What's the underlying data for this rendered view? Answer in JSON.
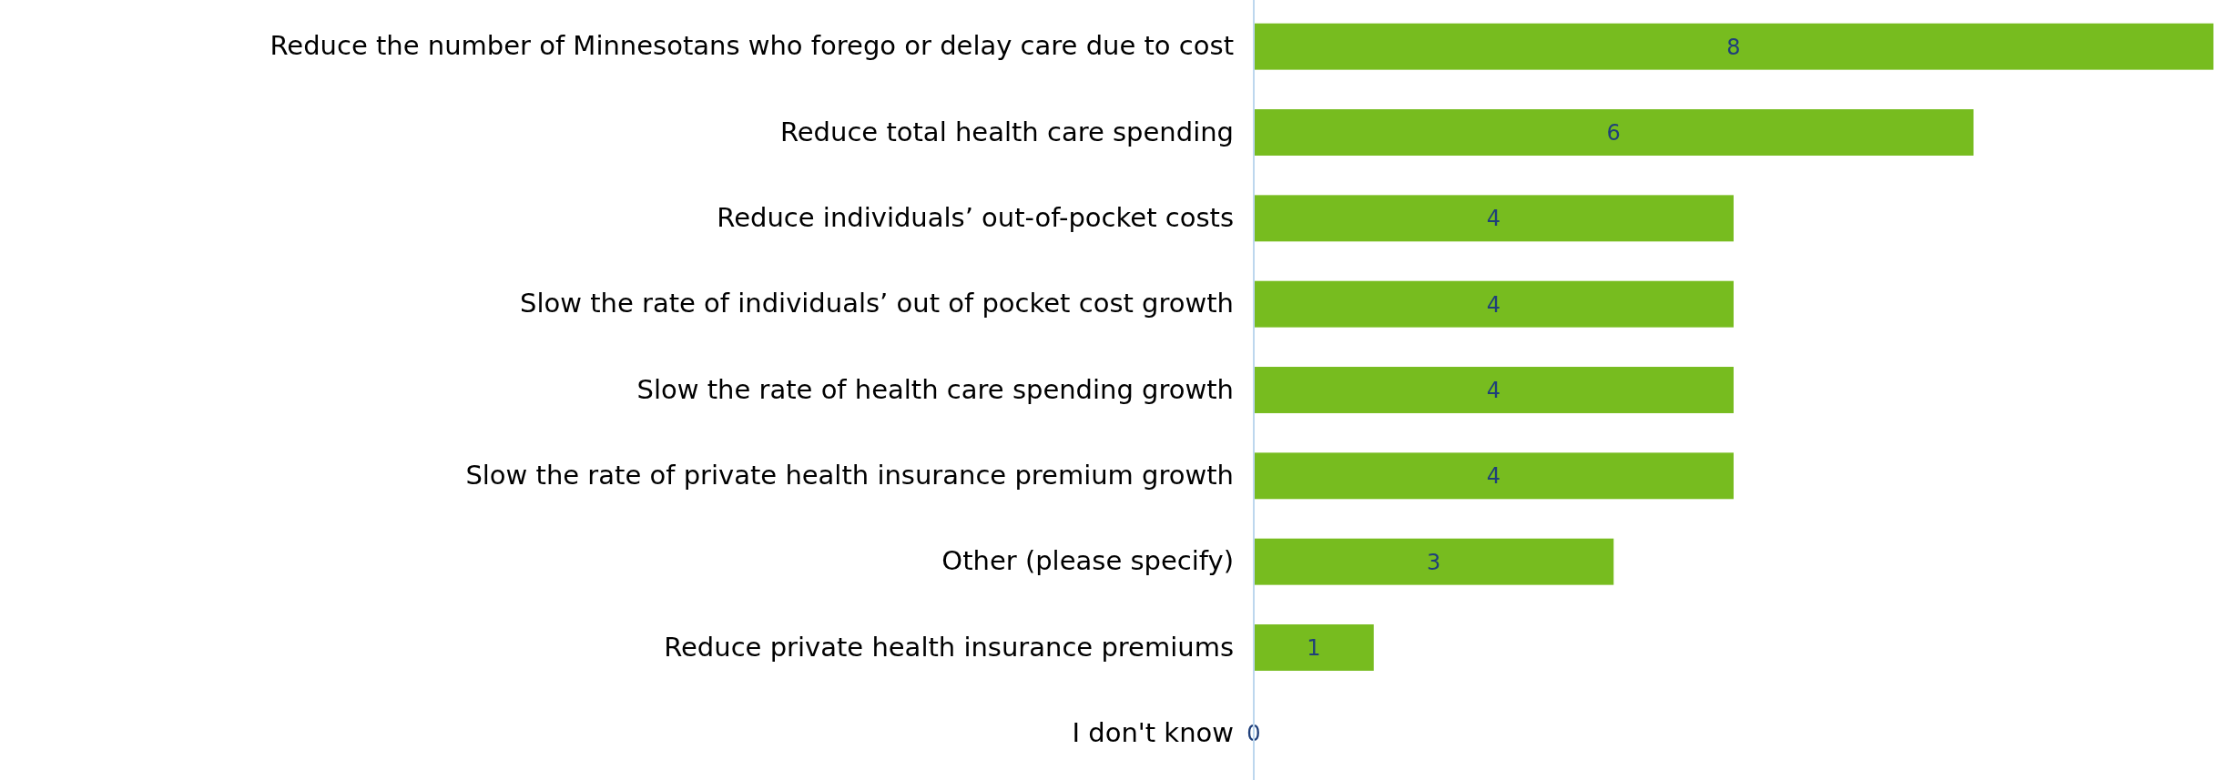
{
  "chart_data": {
    "type": "bar",
    "orientation": "horizontal",
    "categories": [
      "Reduce the number of Minnesotans who forego or delay care due to cost",
      "Reduce total health care spending",
      "Reduce individuals’ out-of-pocket costs",
      "Slow the rate of individuals’ out of pocket cost growth",
      "Slow the rate of health care spending growth",
      "Slow the rate of private health insurance premium growth",
      "Other (please specify)",
      "Reduce private health insurance premiums",
      "I don't know"
    ],
    "values": [
      8,
      6,
      4,
      4,
      4,
      4,
      3,
      1,
      0
    ],
    "color": "#77bc1f",
    "data_labels": true
  }
}
